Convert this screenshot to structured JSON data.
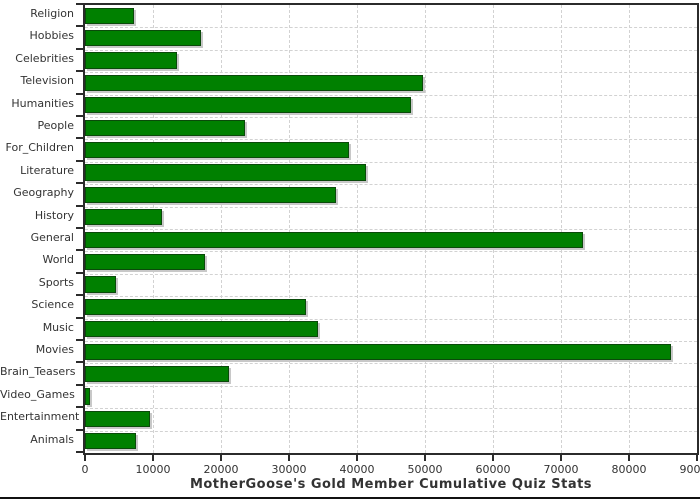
{
  "chart_data": {
    "type": "bar",
    "orientation": "horizontal",
    "title": "MotherGoose's Gold Member Cumulative Quiz Stats",
    "categories": [
      "Religion",
      "Hobbies",
      "Celebrities",
      "Television",
      "Humanities",
      "People",
      "For_Children",
      "Literature",
      "Geography",
      "History",
      "General",
      "World",
      "Sports",
      "Science",
      "Music",
      "Movies",
      "Brain_Teasers",
      "Video_Games",
      "Entertainment",
      "Animals"
    ],
    "values": [
      7200,
      17000,
      13600,
      49700,
      48000,
      23600,
      38800,
      41300,
      36900,
      11300,
      73300,
      17600,
      4600,
      32500,
      34300,
      86200,
      21200,
      700,
      9600,
      7500
    ],
    "xlabel": "",
    "ylabel": "",
    "xlim": [
      0,
      90000
    ],
    "x_ticks": [
      0,
      10000,
      20000,
      30000,
      40000,
      50000,
      60000,
      70000,
      80000,
      90000
    ],
    "x_tick_labels": [
      "0",
      "10000",
      "20000",
      "30000",
      "40000",
      "50000",
      "60000",
      "70000",
      "80000",
      "90000"
    ],
    "grid": "both",
    "legend": "none",
    "colors": {
      "bar_fill": "#008000",
      "bar_border": "#0a4a0a",
      "bar_shadow": "#c8c8c8",
      "gridline": "#d2d2d2",
      "axis": "#2b2b2b",
      "text": "#333333",
      "background": "#ffffff"
    }
  }
}
